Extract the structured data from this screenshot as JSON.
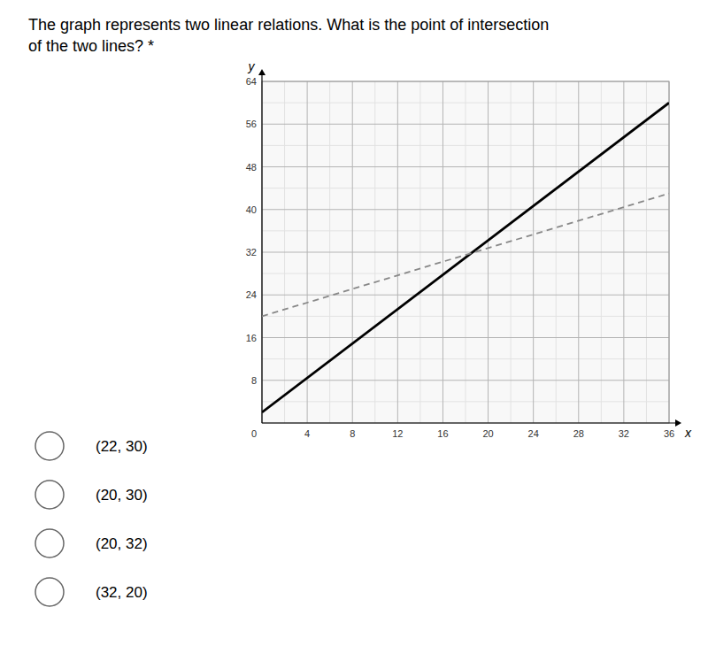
{
  "chart_data": {
    "type": "line",
    "title": [
      "The graph represents two linear relations. What is the point of intersection",
      "of the two lines? *"
    ],
    "x_label": "x",
    "y_label": "y",
    "annotations": [
      "0"
    ],
    "choices": [
      "(22, 30)",
      "(20, 30)",
      "(20, 32)",
      "(32, 20)"
    ],
    "x": [
      0,
      36
    ],
    "series": [
      {
        "values": [
          2,
          60
        ],
        "color": "#000000",
        "line_style": "solid"
      },
      {
        "values": [
          20,
          43
        ],
        "color": "#888888",
        "line_style": "dashed"
      }
    ],
    "xlim": [
      0,
      36
    ],
    "ylim": [
      0,
      64
    ],
    "xticks": [
      4,
      8,
      12,
      16,
      20,
      24,
      28,
      32,
      36
    ],
    "yticks": [
      8,
      16,
      24,
      32,
      40,
      48,
      56,
      64
    ],
    "grid": true
  }
}
